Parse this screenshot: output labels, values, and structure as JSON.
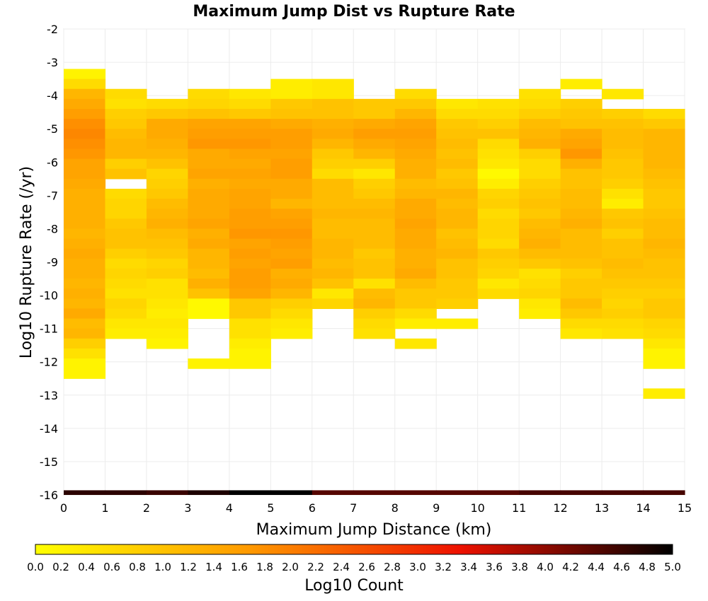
{
  "chart_data": {
    "type": "heatmap",
    "title": "Maximum Jump Dist vs Rupture Rate",
    "xlabel": "Maximum Jump Distance (km)",
    "ylabel": "Log10 Rupture Rate (/yr)",
    "xlim": [
      0,
      15
    ],
    "ylim": [
      -16,
      -2
    ],
    "x_ticks": [
      "0",
      "1",
      "2",
      "3",
      "4",
      "5",
      "6",
      "7",
      "8",
      "9",
      "10",
      "11",
      "12",
      "13",
      "14",
      "15"
    ],
    "y_ticks": [
      "-2",
      "-3",
      "-4",
      "-5",
      "-6",
      "-7",
      "-8",
      "-9",
      "-10",
      "-11",
      "-12",
      "-13",
      "-14",
      "-15",
      "-16"
    ],
    "x_bin_width": 1,
    "y_bin_width": 0.3,
    "grid": true,
    "colorscale": {
      "label": "Log10 Count",
      "range": [
        0,
        5
      ],
      "ticks": [
        "0.0",
        "0.2",
        "0.4",
        "0.6",
        "0.8",
        "1.0",
        "1.2",
        "1.4",
        "1.6",
        "1.8",
        "2.0",
        "2.2",
        "2.4",
        "2.6",
        "2.8",
        "3.0",
        "3.2",
        "3.4",
        "3.6",
        "3.8",
        "4.0",
        "4.2",
        "4.4",
        "4.6",
        "4.8",
        "5.0"
      ],
      "colors": [
        "#ffff00",
        "#ff9a00",
        "#ee1100",
        "#000000"
      ]
    },
    "columns": [
      {
        "x": 0.5,
        "y_top": -3.2,
        "values": [
          0.2,
          0.6,
          1.2,
          1.4,
          1.6,
          1.8,
          1.9,
          1.8,
          1.7,
          1.5,
          1.5,
          1.4,
          1.3,
          1.3,
          1.3,
          1.3,
          1.2,
          1.3,
          1.4,
          1.3,
          1.3,
          1.2,
          1.3,
          1.2,
          1.4,
          1.1,
          1.2,
          0.8,
          0.5,
          0.2,
          0.2
        ]
      },
      {
        "x": 1.5,
        "y_top": -3.8,
        "values": [
          0.6,
          0.5,
          0.8,
          0.9,
          1.1,
          1.2,
          1.2,
          0.8,
          1.0,
          null,
          0.6,
          0.7,
          0.7,
          0.9,
          1.0,
          1.0,
          0.8,
          0.6,
          0.7,
          0.6,
          0.5,
          0.7,
          0.6,
          0.4,
          0.3
        ]
      },
      {
        "x": 2.5,
        "y_top": -4.1,
        "values": [
          0.6,
          0.9,
          1.4,
          1.4,
          1.3,
          1.2,
          1.0,
          0.7,
          0.8,
          0.9,
          1.1,
          1.2,
          1.3,
          1.1,
          1.0,
          0.9,
          0.7,
          0.8,
          0.5,
          0.5,
          0.4,
          0.3,
          0.4,
          0.3,
          0.2
        ]
      },
      {
        "x": 3.5,
        "y_top": -3.8,
        "values": [
          0.6,
          0.7,
          1.0,
          1.5,
          1.6,
          1.7,
          1.4,
          1.4,
          1.5,
          1.3,
          1.4,
          1.4,
          1.4,
          1.5,
          1.3,
          1.4,
          1.2,
          1.2,
          1.1,
          1.3,
          1.0,
          0.1,
          0.1,
          null,
          null,
          null,
          null,
          0.2
        ]
      },
      {
        "x": 4.5,
        "y_top": -3.8,
        "values": [
          0.4,
          0.6,
          0.9,
          1.5,
          1.6,
          1.7,
          1.5,
          1.4,
          1.5,
          1.4,
          1.5,
          1.5,
          1.6,
          1.6,
          1.7,
          1.5,
          1.6,
          1.5,
          1.6,
          1.6,
          1.5,
          0.9,
          0.9,
          0.5,
          0.5,
          0.3,
          0.2,
          0.2
        ]
      },
      {
        "x": 5.5,
        "y_top": -3.5,
        "values": [
          0.3,
          0.3,
          0.9,
          1.0,
          1.4,
          1.6,
          1.6,
          1.5,
          1.6,
          1.6,
          1.4,
          1.4,
          1.2,
          1.5,
          1.6,
          1.7,
          1.6,
          1.5,
          1.6,
          1.3,
          1.4,
          1.2,
          0.8,
          0.6,
          0.4,
          0.3
        ]
      },
      {
        "x": 6.5,
        "y_top": -3.5,
        "values": [
          0.4,
          0.4,
          1.0,
          1.0,
          1.3,
          1.4,
          1.2,
          0.9,
          0.8,
          0.6,
          1.1,
          1.1,
          1.1,
          1.2,
          1.1,
          1.1,
          1.2,
          1.2,
          1.1,
          1.2,
          1.0,
          0.4,
          0.7
        ]
      },
      {
        "x": 7.5,
        "y_top": -4.1,
        "values": [
          0.9,
          0.9,
          1.4,
          1.6,
          1.4,
          1.2,
          0.8,
          0.4,
          0.8,
          0.9,
          1.1,
          1.2,
          1.1,
          1.1,
          1.1,
          0.9,
          1.0,
          1.0,
          0.5,
          1.1,
          1.2,
          0.8,
          0.6,
          0.5
        ]
      },
      {
        "x": 8.5,
        "y_top": -3.8,
        "values": [
          0.6,
          0.9,
          1.2,
          1.5,
          1.6,
          1.5,
          1.4,
          1.3,
          1.3,
          1.1,
          1.2,
          1.4,
          1.4,
          1.5,
          1.4,
          1.4,
          1.3,
          1.3,
          1.4,
          1.1,
          0.9,
          0.9,
          0.6,
          0.3,
          null,
          0.4
        ]
      },
      {
        "x": 9.5,
        "y_top": -4.1,
        "values": [
          0.4,
          0.6,
          0.9,
          1.0,
          1.1,
          1.0,
          1.1,
          0.9,
          1.0,
          1.2,
          1.1,
          1.2,
          1.2,
          1.0,
          1.1,
          1.2,
          1.0,
          1.0,
          0.9,
          0.9,
          0.8,
          null,
          0.3
        ]
      },
      {
        "x": 10.5,
        "y_top": -4.1,
        "values": [
          0.5,
          0.6,
          0.8,
          1.0,
          0.6,
          0.5,
          0.4,
          0.1,
          0.3,
          0.7,
          0.8,
          0.6,
          0.7,
          0.7,
          0.6,
          0.9,
          0.8,
          0.7,
          0.4,
          0.6
        ]
      },
      {
        "x": 11.5,
        "y_top": -3.8,
        "values": [
          0.5,
          0.6,
          0.8,
          1.1,
          1.2,
          1.3,
          0.8,
          0.6,
          0.6,
          0.8,
          0.9,
          1.0,
          0.9,
          1.1,
          1.2,
          1.3,
          1.1,
          0.9,
          0.5,
          0.6,
          0.7,
          0.4,
          0.3
        ]
      },
      {
        "x": 12.5,
        "y_top": -3.5,
        "values": [
          0.3,
          null,
          0.8,
          0.9,
          1.0,
          1.4,
          1.5,
          1.7,
          1.3,
          1.0,
          1.0,
          1.1,
          1.1,
          1.2,
          1.3,
          1.1,
          1.1,
          1.1,
          1.0,
          0.8,
          0.9,
          0.9,
          1.1,
          0.9,
          0.6,
          0.4
        ]
      },
      {
        "x": 13.5,
        "y_top": -3.8,
        "values": [
          0.4,
          null,
          0.8,
          1.0,
          1.1,
          1.1,
          1.0,
          0.9,
          0.9,
          0.8,
          0.5,
          0.3,
          0.9,
          1.0,
          0.8,
          1.0,
          1.0,
          1.1,
          1.0,
          0.9,
          0.8,
          0.7,
          0.8,
          0.6,
          0.5
        ]
      },
      {
        "x": 14.5,
        "y_top": -4.4,
        "values": [
          0.6,
          0.9,
          1.2,
          1.2,
          1.2,
          1.2,
          1.1,
          1.0,
          0.9,
          0.9,
          1.0,
          1.1,
          1.1,
          1.2,
          1.1,
          1.0,
          1.0,
          0.9,
          0.8,
          0.9,
          0.9,
          0.7,
          0.6,
          0.4,
          0.2,
          0.2,
          null,
          null,
          0.3
        ]
      }
    ],
    "bottom_row": {
      "y": -15.93,
      "values": [
        4.7,
        4.7,
        4.6,
        4.8,
        5.0,
        5.0,
        4.4,
        4.4,
        4.4,
        4.4,
        4.4,
        4.5,
        4.5,
        4.5,
        4.5
      ]
    }
  }
}
